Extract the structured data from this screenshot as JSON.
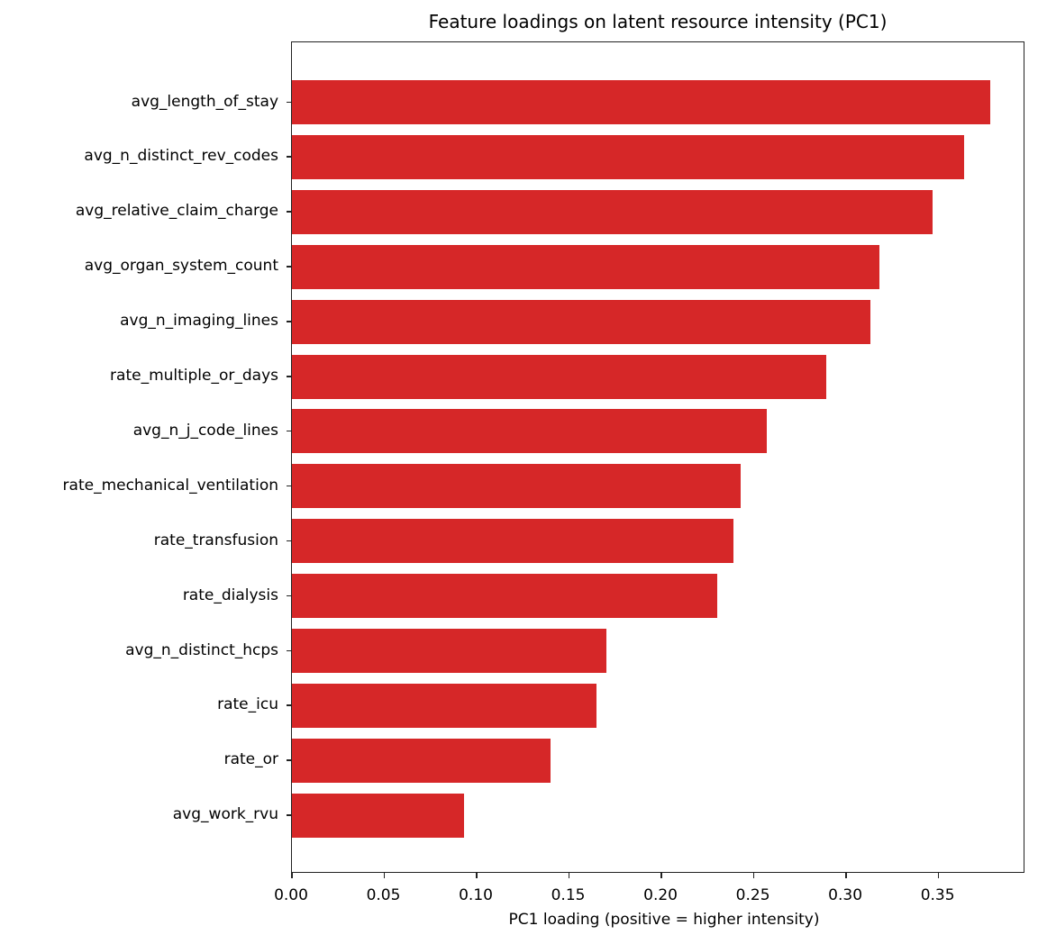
{
  "chart_data": {
    "type": "bar",
    "orientation": "horizontal",
    "title": "Feature loadings on latent resource intensity (PC1)",
    "xlabel": "PC1 loading (positive = higher intensity)",
    "ylabel": "",
    "xlim": [
      0.0,
      0.397
    ],
    "xticks": [
      "0.00",
      "0.05",
      "0.10",
      "0.15",
      "0.20",
      "0.25",
      "0.30",
      "0.35"
    ],
    "grid": false,
    "legend": null,
    "color": "#d62728",
    "categories": [
      "avg_length_of_stay",
      "avg_n_distinct_rev_codes",
      "avg_relative_claim_charge",
      "avg_organ_system_count",
      "avg_n_imaging_lines",
      "rate_multiple_or_days",
      "avg_n_j_code_lines",
      "rate_mechanical_ventilation",
      "rate_transfusion",
      "rate_dialysis",
      "avg_n_distinct_hcps",
      "rate_icu",
      "rate_or",
      "avg_work_rvu"
    ],
    "values": [
      0.378,
      0.364,
      0.347,
      0.318,
      0.313,
      0.289,
      0.257,
      0.243,
      0.239,
      0.23,
      0.17,
      0.165,
      0.14,
      0.093
    ]
  }
}
